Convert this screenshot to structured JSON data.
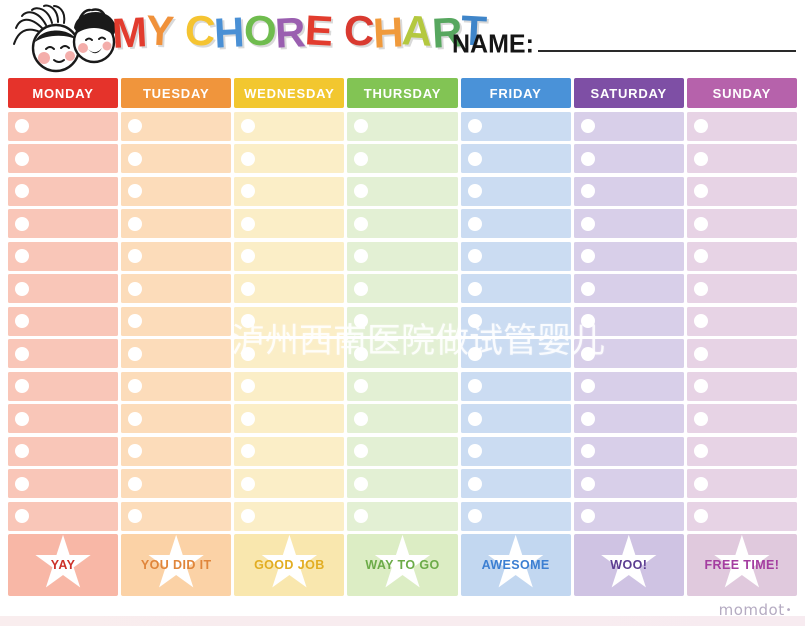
{
  "header": {
    "title_text": "MY CHORE CHART",
    "title_letters": [
      {
        "ch": "M",
        "color": "#e23c2e"
      },
      {
        "ch": "Y",
        "color": "#f0913a"
      },
      {
        "ch": " ",
        "color": ""
      },
      {
        "ch": "C",
        "color": "#f5c431"
      },
      {
        "ch": "H",
        "color": "#4a90d5"
      },
      {
        "ch": "O",
        "color": "#6fbc4e"
      },
      {
        "ch": "R",
        "color": "#9a5fb0"
      },
      {
        "ch": "E",
        "color": "#e23c2e"
      },
      {
        "ch": " ",
        "color": ""
      },
      {
        "ch": "C",
        "color": "#d93a30"
      },
      {
        "ch": "H",
        "color": "#f09a3c"
      },
      {
        "ch": "A",
        "color": "#b4c83f"
      },
      {
        "ch": "R",
        "color": "#57a75f"
      },
      {
        "ch": "T",
        "color": "#3f85c9"
      }
    ],
    "name_label": "NAME:"
  },
  "grid": {
    "rows_per_column": 13,
    "star_icon": "★"
  },
  "columns": [
    {
      "day": "MONDAY",
      "header_color": "#e5332b",
      "row_color": "#f9c6b8",
      "footer_color": "#f8b7a6",
      "footer_label": "YAY",
      "footer_text_color": "#cc3128"
    },
    {
      "day": "TUESDAY",
      "header_color": "#f0953c",
      "row_color": "#fcdcba",
      "footer_color": "#fbd2a6",
      "footer_label": "YOU DID IT",
      "footer_text_color": "#e0853a"
    },
    {
      "day": "WEDNESDAY",
      "header_color": "#f2c72f",
      "row_color": "#fbeec7",
      "footer_color": "#f9e7ae",
      "footer_label": "GOOD JOB",
      "footer_text_color": "#e2ad22"
    },
    {
      "day": "THURSDAY",
      "header_color": "#82c454",
      "row_color": "#e3f0d4",
      "footer_color": "#dcedc4",
      "footer_label": "WAY TO GO",
      "footer_text_color": "#6cab48"
    },
    {
      "day": "FRIDAY",
      "header_color": "#4a92d8",
      "row_color": "#cbdcf2",
      "footer_color": "#c2d7f0",
      "footer_label": "AWESOME",
      "footer_text_color": "#3c7fd2"
    },
    {
      "day": "SATURDAY",
      "header_color": "#7e4fa5",
      "row_color": "#d8cfe9",
      "footer_color": "#cfc3e3",
      "footer_label": "WOO!",
      "footer_text_color": "#5c3d91"
    },
    {
      "day": "SUNDAY",
      "header_color": "#b662ab",
      "row_color": "#e7d3e5",
      "footer_color": "#e0c9dd",
      "footer_label": "FREE TIME!",
      "footer_text_color": "#a43da0"
    }
  ],
  "watermark": {
    "text": "泸州西南医院做试管婴儿"
  },
  "footer": {
    "logo_text": "momdot",
    "logo_dot": "•"
  }
}
